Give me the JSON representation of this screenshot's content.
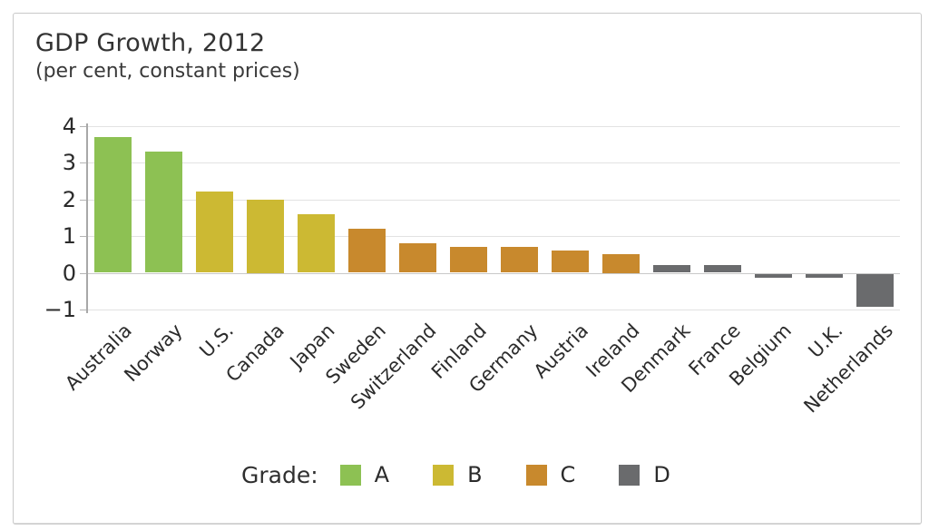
{
  "header": {
    "title": "GDP Growth, 2012",
    "subtitle": "(per cent, constant prices)"
  },
  "legend": {
    "label": "Grade:",
    "items": [
      {
        "grade": "A",
        "color": "#8dc153"
      },
      {
        "grade": "B",
        "color": "#ccb933"
      },
      {
        "grade": "C",
        "color": "#c8892d"
      },
      {
        "grade": "D",
        "color": "#6a6b6d"
      }
    ]
  },
  "chart_data": {
    "type": "bar",
    "title": "GDP Growth, 2012",
    "subtitle": "(per cent, constant prices)",
    "categories": [
      "Australia",
      "Norway",
      "U.S.",
      "Canada",
      "Japan",
      "Sweden",
      "Switzerland",
      "Finland",
      "Germany",
      "Austria",
      "Ireland",
      "Denmark",
      "France",
      "Belgium",
      "U.K.",
      "Netherlands"
    ],
    "values": [
      3.7,
      3.3,
      2.2,
      2.0,
      1.6,
      1.2,
      0.8,
      0.7,
      0.7,
      0.6,
      0.5,
      0.2,
      0.2,
      -0.1,
      -0.1,
      -0.9
    ],
    "grades": [
      "A",
      "A",
      "B",
      "B",
      "B",
      "C",
      "C",
      "C",
      "C",
      "C",
      "C",
      "D",
      "D",
      "D",
      "D",
      "D"
    ],
    "grade_colors": {
      "A": "#8dc153",
      "B": "#ccb933",
      "C": "#c8892d",
      "D": "#6a6b6d"
    },
    "xlabel": "",
    "ylabel": "",
    "yticks": [
      4,
      3,
      2,
      1,
      0,
      -1
    ],
    "ylim": [
      -1,
      4
    ],
    "grid": true,
    "legend_title": "Grade:",
    "legend_entries": [
      "A",
      "B",
      "C",
      "D"
    ],
    "legend_position": "bottom"
  }
}
